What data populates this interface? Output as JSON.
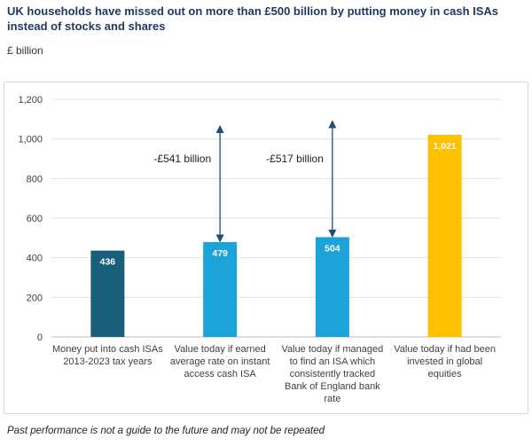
{
  "title": "UK households have missed out on more than £500 billion by putting money in cash ISAs instead of stocks and shares",
  "units": "£ billion",
  "footnote": "Past performance is not a guide to the future and may not be repeated",
  "colors": {
    "dark_teal": "#1a5f7a",
    "blue": "#1ca3d9",
    "gold": "#ffc000",
    "arrow": "#1f4e79"
  },
  "chart_data": {
    "type": "bar",
    "ylim": [
      0,
      1200
    ],
    "yticks": [
      "0",
      "200",
      "400",
      "600",
      "800",
      "1,000",
      "1,200"
    ],
    "ytick_values": [
      0,
      200,
      400,
      600,
      800,
      1000,
      1200
    ],
    "grid": true,
    "categories": [
      [
        "Money put into cash ISAs",
        "2013-2023 tax years"
      ],
      [
        "Value today if earned",
        "average rate on instant",
        "access cash ISA"
      ],
      [
        "Value today if managed",
        "to find an ISA which",
        "consistently tracked",
        "Bank of England bank",
        "rate"
      ],
      [
        "Value today if had been",
        "invested in global",
        "equities"
      ]
    ],
    "values": [
      436,
      479,
      504,
      1021
    ],
    "value_labels": [
      "436",
      "479",
      "504",
      "1,021"
    ],
    "bar_colors": [
      "#1a5f7a",
      "#1ca3d9",
      "#1ca3d9",
      "#ffc000"
    ],
    "annotations": [
      {
        "text": "-£541 billion",
        "bar_index": 1,
        "from": 479,
        "to": 1050
      },
      {
        "text": "-£517 billion",
        "bar_index": 2,
        "from": 504,
        "to": 1075
      }
    ]
  }
}
